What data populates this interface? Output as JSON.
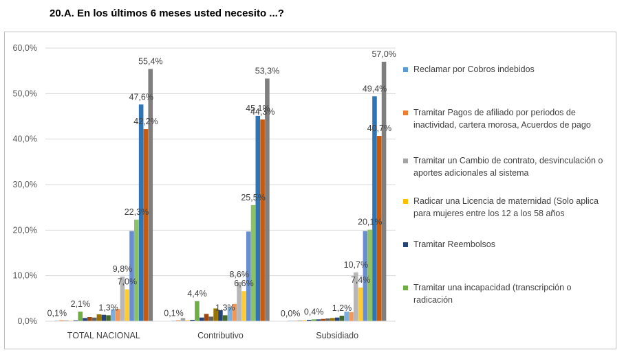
{
  "title": "20.A. En los últimos 6 meses usted necesito ...?",
  "legend_items": [
    {
      "label": "Reclamar por Cobros indebidos",
      "color": "#5B9BD5"
    },
    {
      "label": "Tramitar Pagos de afiliado por periodos de inactividad, cartera morosa, Acuerdos de pago",
      "color": "#ED7D31"
    },
    {
      "label": "Tramitar un Cambio de contrato, desvinculación o aportes adicionales al sistema",
      "color": "#A5A5A5"
    },
    {
      "label": "Radicar una Licencia de maternidad (Solo aplica para mujeres entre los 12 a los 58 años",
      "color": "#FFC000"
    },
    {
      "label": "Tramitar Reembolsos",
      "color": "#264478"
    },
    {
      "label": "Tramitar una incapacidad (transcripción o radicación",
      "color": "#70AD47"
    }
  ],
  "chart_data": {
    "type": "bar",
    "categories": [
      "TOTAL NACIONAL",
      "Contributivo",
      "Subsidiado"
    ],
    "ylim": [
      0,
      60
    ],
    "yticks": [
      "0,0%",
      "10,0%",
      "20,0%",
      "30,0%",
      "40,0%",
      "50,0%",
      "60,0%"
    ],
    "series": [
      {
        "color": "#5B9BD5",
        "values": [
          0.1,
          0.1,
          0.0
        ]
      },
      {
        "color": "#ED7D31",
        "values": [
          0.2,
          0.2,
          0.1
        ]
      },
      {
        "color": "#A5A5A5",
        "values": [
          0.2,
          0.7,
          0.2
        ]
      },
      {
        "color": "#FFC000",
        "values": [
          0.1,
          0.2,
          0.2
        ]
      },
      {
        "color": "#264478",
        "values": [
          0.2,
          0.3,
          0.3
        ]
      },
      {
        "color": "#70AD47",
        "values": [
          2.1,
          4.4,
          0.4
        ]
      },
      {
        "color": "#264478",
        "values": [
          0.7,
          0.8,
          0.4
        ]
      },
      {
        "color": "#9E480E",
        "values": [
          0.9,
          1.6,
          0.5
        ]
      },
      {
        "color": "#636363",
        "values": [
          0.8,
          1.0,
          0.6
        ]
      },
      {
        "color": "#997300",
        "values": [
          1.5,
          2.8,
          0.7
        ]
      },
      {
        "color": "#264478",
        "values": [
          1.4,
          2.4,
          0.8
        ]
      },
      {
        "color": "#43682B",
        "values": [
          1.3,
          1.3,
          1.2
        ]
      },
      {
        "color": "#7CAFDD",
        "values": [
          2.6,
          3.0,
          2.1
        ]
      },
      {
        "color": "#F1975A",
        "values": [
          2.7,
          3.8,
          2.0
        ]
      },
      {
        "color": "#B7B7B7",
        "values": [
          9.8,
          8.6,
          10.7
        ]
      },
      {
        "color": "#FFCD33",
        "values": [
          7.0,
          6.6,
          7.4
        ]
      },
      {
        "color": "#698ED0",
        "values": [
          19.8,
          19.7,
          19.8
        ]
      },
      {
        "color": "#8CC168",
        "values": [
          22.3,
          25.5,
          20.1
        ]
      },
      {
        "color": "#2E75B6",
        "values": [
          47.6,
          45.1,
          49.4
        ]
      },
      {
        "color": "#C55A11",
        "values": [
          42.2,
          44.3,
          40.7
        ]
      },
      {
        "color": "#7F7F7F",
        "values": [
          55.4,
          53.3,
          57.0
        ]
      }
    ],
    "data_labels": [
      {
        "category": 0,
        "series": 0,
        "text": "0,1%"
      },
      {
        "category": 0,
        "series": 5,
        "text": "2,1%"
      },
      {
        "category": 0,
        "series": 11,
        "text": "1,3%"
      },
      {
        "category": 0,
        "series": 14,
        "text": "9,8%"
      },
      {
        "category": 0,
        "series": 15,
        "text": "7,0%"
      },
      {
        "category": 0,
        "series": 17,
        "text": "22,3%"
      },
      {
        "category": 0,
        "series": 18,
        "text": "47,6%"
      },
      {
        "category": 0,
        "series": 19,
        "text": "42,2%"
      },
      {
        "category": 0,
        "series": 20,
        "text": "55,4%"
      },
      {
        "category": 1,
        "series": 0,
        "text": "0,1%"
      },
      {
        "category": 1,
        "series": 5,
        "text": "4,4%"
      },
      {
        "category": 1,
        "series": 11,
        "text": "1,3%"
      },
      {
        "category": 1,
        "series": 14,
        "text": "8,6%"
      },
      {
        "category": 1,
        "series": 15,
        "text": "6,6%"
      },
      {
        "category": 1,
        "series": 17,
        "text": "25,5%"
      },
      {
        "category": 1,
        "series": 18,
        "text": "45,1%"
      },
      {
        "category": 1,
        "series": 19,
        "text": "44,3%"
      },
      {
        "category": 1,
        "series": 20,
        "text": "53,3%"
      },
      {
        "category": 2,
        "series": 0,
        "text": "0,0%"
      },
      {
        "category": 2,
        "series": 5,
        "text": "0,4%"
      },
      {
        "category": 2,
        "series": 11,
        "text": "1,2%"
      },
      {
        "category": 2,
        "series": 14,
        "text": "10,7%"
      },
      {
        "category": 2,
        "series": 15,
        "text": "7,4%"
      },
      {
        "category": 2,
        "series": 17,
        "text": "20,1%"
      },
      {
        "category": 2,
        "series": 18,
        "text": "49,4%"
      },
      {
        "category": 2,
        "series": 19,
        "text": "40,7%"
      },
      {
        "category": 2,
        "series": 20,
        "text": "57,0%"
      }
    ]
  }
}
